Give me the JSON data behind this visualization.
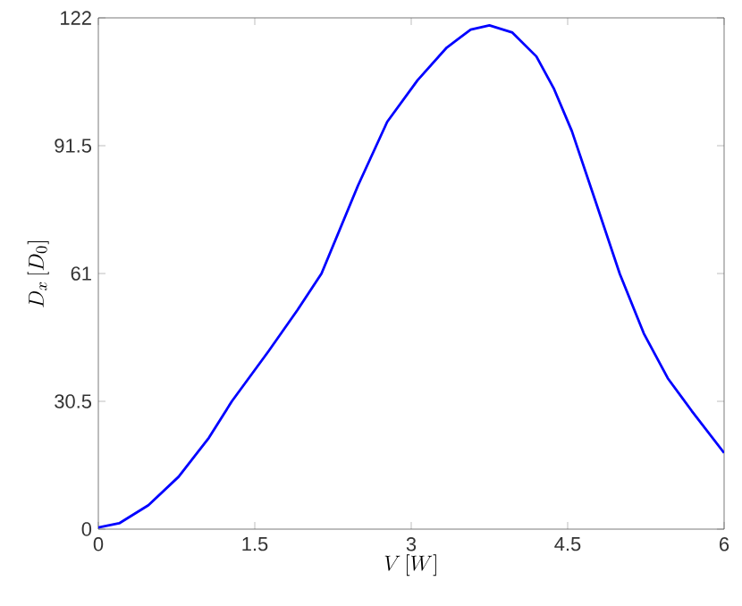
{
  "chart_data": {
    "type": "line",
    "xlabel": "V\\,[W]",
    "ylabel": "D_x\\,[D_0]",
    "xlim": [
      0,
      6
    ],
    "ylim": [
      0,
      122
    ],
    "xticks": [
      0,
      1.5,
      3,
      4.5,
      6
    ],
    "yticks": [
      0,
      30.5,
      61,
      91.5,
      122
    ],
    "grid": false,
    "marker": "none",
    "line_style": "solid",
    "series": [
      {
        "color": "#0000ff",
        "x": [
          0,
          0.2,
          0.48,
          0.77,
          1.06,
          1.28,
          1.63,
          1.91,
          2.14,
          2.49,
          2.77,
          3.06,
          3.34,
          3.57,
          3.75,
          3.97,
          4.2,
          4.37,
          4.54,
          4.77,
          5.0,
          5.23,
          5.46,
          5.69,
          6
        ],
        "values": [
          0.4,
          1.4,
          5.7,
          12.5,
          21.8,
          30.5,
          42.4,
          52.3,
          61,
          82,
          97.2,
          107.1,
          114.9,
          119.2,
          120.2,
          118.5,
          112.8,
          105,
          95,
          78,
          60.9,
          46.7,
          36,
          28.2,
          18.2
        ]
      }
    ]
  }
}
